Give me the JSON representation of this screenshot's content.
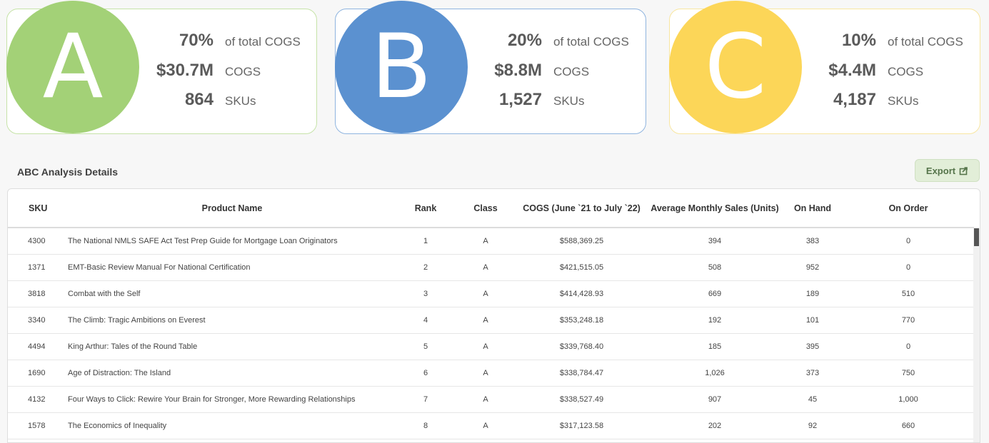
{
  "cards": [
    {
      "letter": "A",
      "color": "#a3d177",
      "border": "#c6e3a8",
      "pct": "70%",
      "pct_label": "of total COGS",
      "cogs": "$30.7M",
      "cogs_label": "COGS",
      "skus": "864",
      "skus_label": "SKUs"
    },
    {
      "letter": "B",
      "color": "#5b91d0",
      "border": "#8fb4df",
      "pct": "20%",
      "pct_label": "of total COGS",
      "cogs": "$8.8M",
      "cogs_label": "COGS",
      "skus": "1,527",
      "skus_label": "SKUs"
    },
    {
      "letter": "C",
      "color": "#fcd658",
      "border": "#f8e6a0",
      "pct": "10%",
      "pct_label": "of total COGS",
      "cogs": "$4.4M",
      "cogs_label": "COGS",
      "skus": "4,187",
      "skus_label": "SKUs"
    }
  ],
  "section": {
    "title": "ABC Analysis Details",
    "export_label": "Export",
    "export_icon": "export-icon"
  },
  "table": {
    "headers": {
      "sku": "SKU",
      "name": "Product Name",
      "rank": "Rank",
      "class": "Class",
      "cogs": "COGS (June `21 to July `22)",
      "avg": "Average Monthly Sales (Units)",
      "onhand": "On Hand",
      "onorder": "On Order"
    },
    "rows": [
      {
        "sku": "4300",
        "name": "The National NMLS SAFE Act Test Prep Guide for Mortgage Loan Originators",
        "rank": "1",
        "class": "A",
        "cogs": "$588,369.25",
        "avg": "394",
        "onhand": "383",
        "onorder": "0"
      },
      {
        "sku": "1371",
        "name": "EMT-Basic Review Manual For National Certification",
        "rank": "2",
        "class": "A",
        "cogs": "$421,515.05",
        "avg": "508",
        "onhand": "952",
        "onorder": "0"
      },
      {
        "sku": "3818",
        "name": "Combat with the Self",
        "rank": "3",
        "class": "A",
        "cogs": "$414,428.93",
        "avg": "669",
        "onhand": "189",
        "onorder": "510"
      },
      {
        "sku": "3340",
        "name": "The Climb: Tragic Ambitions on Everest",
        "rank": "4",
        "class": "A",
        "cogs": "$353,248.18",
        "avg": "192",
        "onhand": "101",
        "onorder": "770"
      },
      {
        "sku": "4494",
        "name": "King Arthur: Tales of the Round Table",
        "rank": "5",
        "class": "A",
        "cogs": "$339,768.40",
        "avg": "185",
        "onhand": "395",
        "onorder": "0"
      },
      {
        "sku": "1690",
        "name": "Age of Distraction: The Island",
        "rank": "6",
        "class": "A",
        "cogs": "$338,784.47",
        "avg": "1,026",
        "onhand": "373",
        "onorder": "750"
      },
      {
        "sku": "4132",
        "name": "Four Ways to Click: Rewire Your Brain for Stronger, More Rewarding Relationships",
        "rank": "7",
        "class": "A",
        "cogs": "$338,527.49",
        "avg": "907",
        "onhand": "45",
        "onorder": "1,000"
      },
      {
        "sku": "1578",
        "name": "The Economics of Inequality",
        "rank": "8",
        "class": "A",
        "cogs": "$317,123.58",
        "avg": "202",
        "onhand": "92",
        "onorder": "660"
      }
    ]
  }
}
